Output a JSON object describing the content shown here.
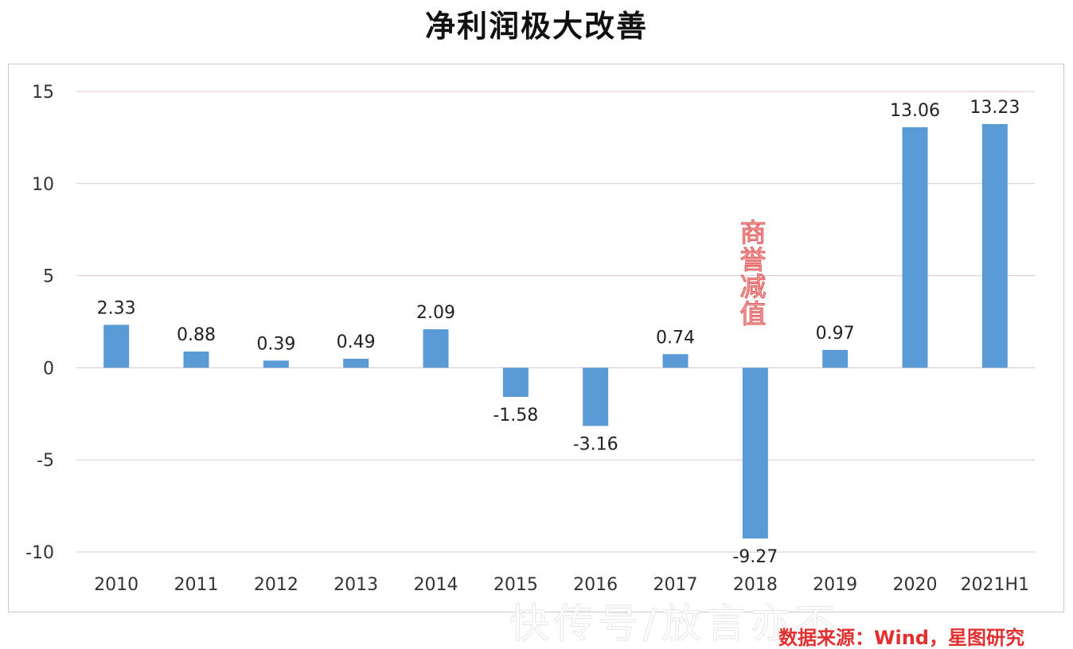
{
  "chart_data": {
    "type": "bar",
    "title": "净利润极大改善",
    "categories": [
      "2010",
      "2011",
      "2012",
      "2013",
      "2014",
      "2015",
      "2016",
      "2017",
      "2018",
      "2019",
      "2020",
      "2021H1"
    ],
    "values": [
      2.33,
      0.88,
      0.39,
      0.49,
      2.09,
      -1.58,
      -3.16,
      0.74,
      -9.27,
      0.97,
      13.06,
      13.23
    ],
    "value_labels": [
      "2.33",
      "0.88",
      "0.39",
      "0.49",
      "2.09",
      "-1.58",
      "-3.16",
      "0.74",
      "-9.27",
      "0.97",
      "13.06",
      "13.23"
    ],
    "ylim": [
      -10,
      15
    ],
    "yticks": [
      15,
      10,
      5,
      0,
      -5,
      -10
    ],
    "xlabel": "",
    "ylabel": "",
    "grid": true,
    "legend": "none",
    "bar_color": "#5b9bd5",
    "grid_color": "#dcc5d0",
    "annotations": [
      {
        "category": "2018",
        "text": "商誉减值",
        "color": "#e05555"
      }
    ]
  },
  "source_note": "数据来源：Wind，星图研究",
  "watermark": "快传号/放言亦不"
}
